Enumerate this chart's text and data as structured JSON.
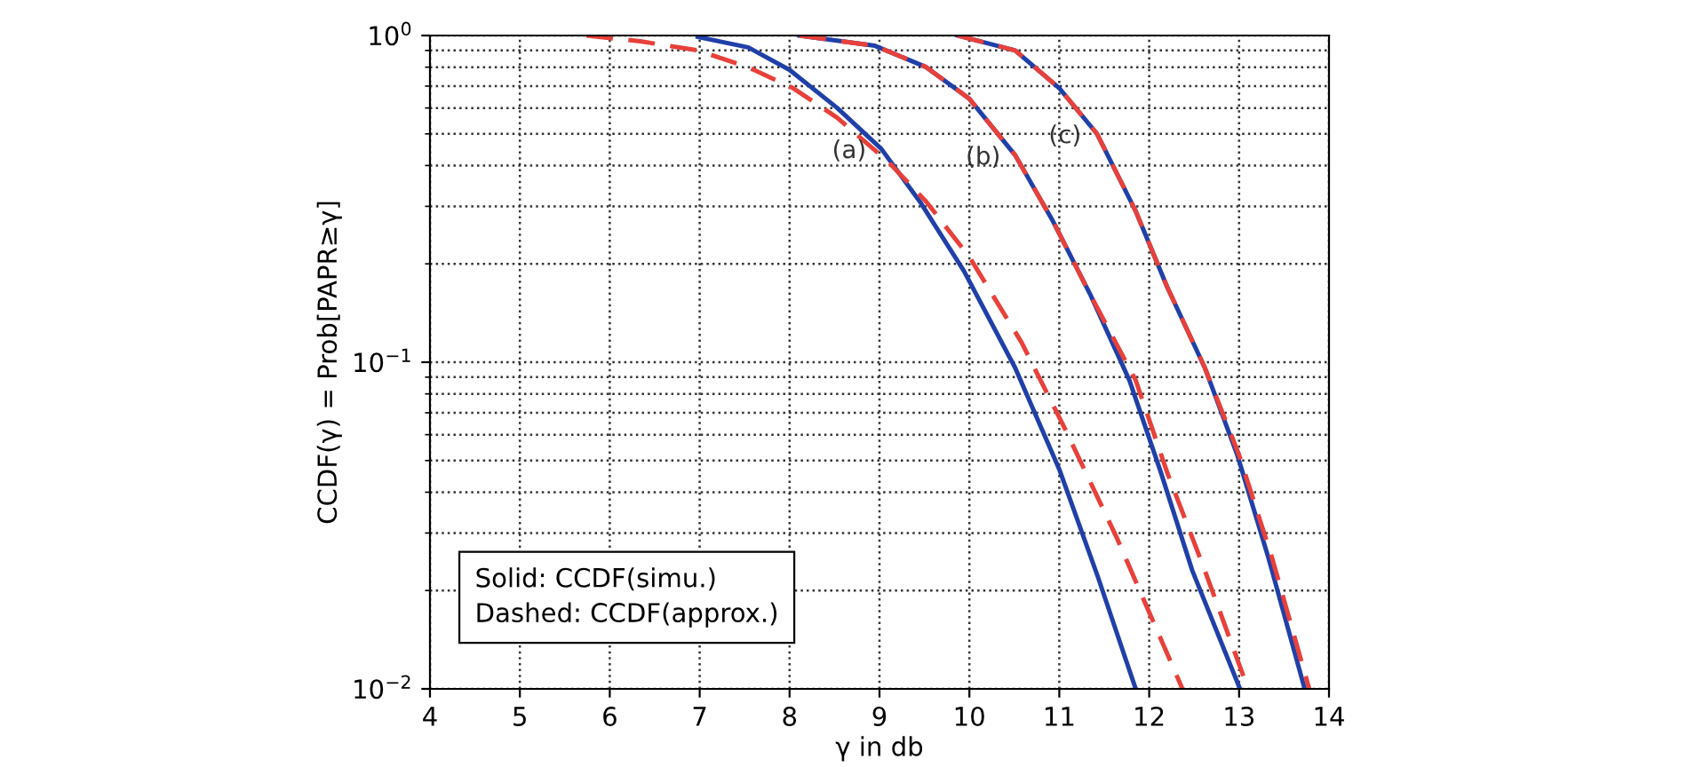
{
  "chart_data": {
    "type": "line",
    "xlabel": "γ in db",
    "ylabel": "CCDF(γ) = Prob[PAPR≥γ]",
    "log": "y",
    "grid": true,
    "marker": "none",
    "xlim": [
      4,
      14
    ],
    "xticks": [
      4,
      5,
      6,
      7,
      8,
      9,
      10,
      11,
      12,
      13,
      14
    ],
    "ylim": [
      0.01,
      1
    ],
    "yticks": [
      {
        "value": 0.01,
        "label": "10$^{−2}$"
      },
      {
        "value": 0.1,
        "label": "10$^{−1}$"
      },
      {
        "value": 1,
        "label": "10$^{0}$"
      }
    ],
    "series": [
      {
        "name": "(a)",
        "color": "#2040a8",
        "line_style": "solid",
        "x": [
          6.98,
          7.54,
          8.0,
          8.53,
          9.02,
          9.45,
          9.94,
          10.51,
          11.0,
          11.43,
          11.85
        ],
        "values": [
          0.99,
          0.92,
          0.785,
          0.6,
          0.45,
          0.31,
          0.19,
          0.096,
          0.047,
          0.022,
          0.01
        ]
      },
      {
        "color": "#e8403a",
        "line_style": "dashed",
        "x": [
          5.74,
          6.34,
          6.98,
          7.54,
          8.04,
          8.53,
          9.1,
          9.52,
          10.0,
          10.58,
          11.07,
          11.64,
          12.37
        ],
        "values": [
          1.0,
          0.96,
          0.9,
          0.8,
          0.69,
          0.56,
          0.41,
          0.31,
          0.21,
          0.115,
          0.062,
          0.029,
          0.01
        ]
      },
      {
        "name": "(b)",
        "color": "#2040a8",
        "line_style": "solid",
        "x": [
          8.11,
          8.95,
          9.52,
          10.0,
          10.51,
          10.93,
          11.35,
          11.78,
          12.13,
          12.48,
          13.01
        ],
        "values": [
          1.0,
          0.93,
          0.8,
          0.64,
          0.43,
          0.27,
          0.16,
          0.088,
          0.046,
          0.023,
          0.01
        ]
      },
      {
        "color": "#e8403a",
        "line_style": "dashed",
        "x": [
          8.11,
          8.95,
          9.52,
          10.0,
          10.51,
          10.93,
          11.35,
          11.85,
          12.2,
          12.62,
          13.1
        ],
        "values": [
          1.0,
          0.93,
          0.8,
          0.64,
          0.43,
          0.27,
          0.16,
          0.088,
          0.046,
          0.023,
          0.01
        ]
      },
      {
        "name": "(c)",
        "color": "#2040a8",
        "line_style": "solid",
        "x": [
          9.87,
          10.51,
          11.0,
          11.42,
          11.85,
          12.2,
          12.62,
          12.98,
          13.33,
          13.73
        ],
        "values": [
          1.0,
          0.9,
          0.69,
          0.5,
          0.29,
          0.17,
          0.096,
          0.052,
          0.025,
          0.01
        ]
      },
      {
        "color": "#e8403a",
        "line_style": "dashed",
        "x": [
          9.87,
          10.51,
          11.0,
          11.42,
          11.85,
          12.2,
          12.62,
          13.0,
          13.37,
          13.78
        ],
        "values": [
          1.0,
          0.9,
          0.69,
          0.5,
          0.29,
          0.17,
          0.096,
          0.052,
          0.025,
          0.01
        ]
      }
    ],
    "annotations": [
      "Solid: CCDF(simu.)\nDashed: CCDF(approx.)"
    ]
  }
}
